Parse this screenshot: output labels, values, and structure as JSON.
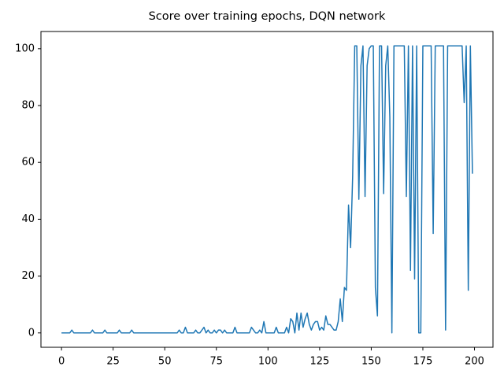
{
  "chart_data": {
    "type": "line",
    "title": "Score over training epochs, DQN network",
    "x": [
      0,
      1,
      2,
      3,
      4,
      5,
      6,
      7,
      8,
      9,
      10,
      11,
      12,
      13,
      14,
      15,
      16,
      17,
      18,
      19,
      20,
      21,
      22,
      23,
      24,
      25,
      26,
      27,
      28,
      29,
      30,
      31,
      32,
      33,
      34,
      35,
      36,
      37,
      38,
      39,
      40,
      41,
      42,
      43,
      44,
      45,
      46,
      47,
      48,
      49,
      50,
      51,
      52,
      53,
      54,
      55,
      56,
      57,
      58,
      59,
      60,
      61,
      62,
      63,
      64,
      65,
      66,
      67,
      68,
      69,
      70,
      71,
      72,
      73,
      74,
      75,
      76,
      77,
      78,
      79,
      80,
      81,
      82,
      83,
      84,
      85,
      86,
      87,
      88,
      89,
      90,
      91,
      92,
      93,
      94,
      95,
      96,
      97,
      98,
      99,
      100,
      101,
      102,
      103,
      104,
      105,
      106,
      107,
      108,
      109,
      110,
      111,
      112,
      113,
      114,
      115,
      116,
      117,
      118,
      119,
      120,
      121,
      122,
      123,
      124,
      125,
      126,
      127,
      128,
      129,
      130,
      131,
      132,
      133,
      134,
      135,
      136,
      137,
      138,
      139,
      140,
      141,
      142,
      143,
      144,
      145,
      146,
      147,
      148,
      149,
      150,
      151,
      152,
      153,
      154,
      155,
      156,
      157,
      158,
      159,
      160,
      161,
      162,
      163,
      164,
      165,
      166,
      167,
      168,
      169,
      170,
      171,
      172,
      173,
      174,
      175,
      176,
      177,
      178,
      179,
      180,
      181,
      182,
      183,
      184,
      185,
      186,
      187,
      188,
      189,
      190,
      191,
      192,
      193,
      194,
      195,
      196,
      197,
      198,
      199
    ],
    "values": [
      0,
      0,
      0,
      0,
      0,
      1,
      0,
      0,
      0,
      0,
      0,
      0,
      0,
      0,
      0,
      1,
      0,
      0,
      0,
      0,
      0,
      1,
      0,
      0,
      0,
      0,
      0,
      0,
      1,
      0,
      0,
      0,
      0,
      0,
      1,
      0,
      0,
      0,
      0,
      0,
      0,
      0,
      0,
      0,
      0,
      0,
      0,
      0,
      0,
      0,
      0,
      0,
      0,
      0,
      0,
      0,
      0,
      1,
      0,
      0,
      2,
      0,
      0,
      0,
      0,
      1,
      0,
      0,
      1,
      2,
      0,
      1,
      0,
      0,
      1,
      0,
      1,
      1,
      0,
      1,
      0,
      0,
      0,
      0,
      2,
      0,
      0,
      0,
      0,
      0,
      0,
      0,
      2,
      1,
      0,
      0,
      1,
      0,
      4,
      0,
      0,
      0,
      0,
      0,
      2,
      0,
      0,
      0,
      0,
      2,
      0,
      5,
      4,
      0,
      7,
      1,
      7,
      2,
      5,
      7,
      3,
      1,
      3,
      4,
      4,
      1,
      2,
      1,
      6,
      3,
      3,
      2,
      1,
      1,
      4,
      12,
      4,
      16,
      15,
      45,
      30,
      55,
      101,
      101,
      47,
      94,
      101,
      48,
      94,
      100,
      101,
      101,
      16,
      6,
      101,
      101,
      49,
      94,
      101,
      76,
      0,
      101,
      101,
      101,
      101,
      101,
      101,
      48,
      101,
      22,
      101,
      19,
      101,
      0,
      0,
      101,
      101,
      101,
      101,
      101,
      35,
      101,
      101,
      101,
      101,
      101,
      1,
      101,
      101,
      101,
      101,
      101,
      101,
      101,
      101,
      81,
      101,
      15,
      101,
      56
    ],
    "color": "#1f77b4",
    "xlim": [
      -9.95,
      208.95
    ],
    "xticks": [
      0,
      25,
      50,
      75,
      100,
      125,
      150,
      175,
      200
    ],
    "ylim": [
      -5.05,
      106.05
    ],
    "yticks": [
      0,
      20,
      40,
      60,
      80,
      100
    ]
  }
}
